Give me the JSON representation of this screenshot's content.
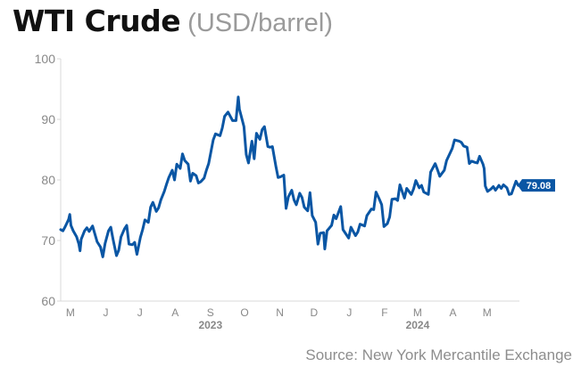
{
  "title": "WTI Crude",
  "subtitle": "(USD/barrel)",
  "source": "Source: New York Mercantile Exchange",
  "colors": {
    "line": "#0a56a4",
    "grid": "#d9d9d9",
    "axis_text": "#888888",
    "label_bg": "#0a56a4"
  },
  "chart_data": {
    "type": "line",
    "title": "WTI Crude",
    "subtitle": "(USD/barrel)",
    "xlabel": "",
    "ylabel": "",
    "ylim": [
      60,
      100
    ],
    "yticks": [
      60,
      70,
      80,
      90,
      100
    ],
    "grid": "vertical-left-axis-only",
    "x_ticks": [
      "2023-05-01",
      "2023-06-01",
      "2023-07-01",
      "2023-08-01",
      "2023-09-01",
      "2023-10-01",
      "2023-11-01",
      "2023-12-01",
      "2024-01-01",
      "2024-02-01",
      "2024-03-01",
      "2024-04-01",
      "2024-05-01"
    ],
    "x_tick_labels": [
      "M",
      "J",
      "J",
      "A",
      "S",
      "O",
      "N",
      "D",
      "J",
      "F",
      "M",
      "A",
      "M"
    ],
    "year_labels": [
      {
        "label": "2023",
        "date": "2023-09-01"
      },
      {
        "label": "2024",
        "date": "2024-03-01"
      }
    ],
    "x_range": [
      "2023-04-24",
      "2024-05-31"
    ],
    "last_value_label": "79.08",
    "series": [
      {
        "values": [
          [
            "2023-04-24",
            71.8
          ],
          [
            "2023-04-26",
            71.6
          ],
          [
            "2023-04-28",
            72.3
          ],
          [
            "2023-05-01",
            73.5
          ],
          [
            "2023-05-02",
            74.3
          ],
          [
            "2023-05-03",
            72.5
          ],
          [
            "2023-05-05",
            71.6
          ],
          [
            "2023-05-08",
            70.6
          ],
          [
            "2023-05-10",
            69.4
          ],
          [
            "2023-05-11",
            68.3
          ],
          [
            "2023-05-12",
            70.2
          ],
          [
            "2023-05-15",
            71.6
          ],
          [
            "2023-05-17",
            72.1
          ],
          [
            "2023-05-19",
            71.5
          ],
          [
            "2023-05-22",
            72.4
          ],
          [
            "2023-05-24",
            71.1
          ],
          [
            "2023-05-26",
            69.8
          ],
          [
            "2023-05-29",
            68.9
          ],
          [
            "2023-05-31",
            67.3
          ],
          [
            "2023-06-02",
            69.5
          ],
          [
            "2023-06-05",
            71.6
          ],
          [
            "2023-06-07",
            72.2
          ],
          [
            "2023-06-09",
            70.2
          ],
          [
            "2023-06-12",
            67.5
          ],
          [
            "2023-06-14",
            68.4
          ],
          [
            "2023-06-16",
            70.6
          ],
          [
            "2023-06-19",
            71.9
          ],
          [
            "2023-06-21",
            72.5
          ],
          [
            "2023-06-23",
            69.4
          ],
          [
            "2023-06-26",
            69.3
          ],
          [
            "2023-06-28",
            69.7
          ],
          [
            "2023-06-30",
            67.7
          ],
          [
            "2023-07-03",
            70.5
          ],
          [
            "2023-07-05",
            71.8
          ],
          [
            "2023-07-07",
            73.4
          ],
          [
            "2023-07-10",
            73.0
          ],
          [
            "2023-07-12",
            75.5
          ],
          [
            "2023-07-14",
            76.3
          ],
          [
            "2023-07-17",
            74.8
          ],
          [
            "2023-07-19",
            75.4
          ],
          [
            "2023-07-21",
            76.7
          ],
          [
            "2023-07-24",
            78.1
          ],
          [
            "2023-07-26",
            79.3
          ],
          [
            "2023-07-28",
            80.4
          ],
          [
            "2023-07-31",
            81.6
          ],
          [
            "2023-08-02",
            80.0
          ],
          [
            "2023-08-04",
            82.6
          ],
          [
            "2023-08-07",
            81.9
          ],
          [
            "2023-08-09",
            84.3
          ],
          [
            "2023-08-11",
            83.2
          ],
          [
            "2023-08-14",
            82.6
          ],
          [
            "2023-08-16",
            79.8
          ],
          [
            "2023-08-18",
            81.1
          ],
          [
            "2023-08-21",
            80.7
          ],
          [
            "2023-08-23",
            79.5
          ],
          [
            "2023-08-25",
            79.7
          ],
          [
            "2023-08-28",
            80.3
          ],
          [
            "2023-08-30",
            81.6
          ],
          [
            "2023-09-01",
            82.7
          ],
          [
            "2023-09-05",
            86.6
          ],
          [
            "2023-09-07",
            87.6
          ],
          [
            "2023-09-11",
            87.3
          ],
          [
            "2023-09-13",
            88.6
          ],
          [
            "2023-09-15",
            90.5
          ],
          [
            "2023-09-18",
            91.2
          ],
          [
            "2023-09-20",
            90.5
          ],
          [
            "2023-09-22",
            89.8
          ],
          [
            "2023-09-25",
            89.8
          ],
          [
            "2023-09-27",
            93.7
          ],
          [
            "2023-09-28",
            91.7
          ],
          [
            "2023-10-02",
            88.8
          ],
          [
            "2023-10-04",
            84.2
          ],
          [
            "2023-10-06",
            82.8
          ],
          [
            "2023-10-09",
            86.4
          ],
          [
            "2023-10-11",
            83.5
          ],
          [
            "2023-10-13",
            87.7
          ],
          [
            "2023-10-16",
            86.7
          ],
          [
            "2023-10-18",
            88.3
          ],
          [
            "2023-10-20",
            88.8
          ],
          [
            "2023-10-23",
            85.5
          ],
          [
            "2023-10-25",
            85.4
          ],
          [
            "2023-10-27",
            85.5
          ],
          [
            "2023-10-30",
            82.3
          ],
          [
            "2023-11-01",
            80.4
          ],
          [
            "2023-11-03",
            80.5
          ],
          [
            "2023-11-06",
            80.8
          ],
          [
            "2023-11-08",
            75.3
          ],
          [
            "2023-11-10",
            77.2
          ],
          [
            "2023-11-13",
            78.3
          ],
          [
            "2023-11-15",
            76.7
          ],
          [
            "2023-11-17",
            75.9
          ],
          [
            "2023-11-20",
            77.8
          ],
          [
            "2023-11-22",
            77.1
          ],
          [
            "2023-11-24",
            75.5
          ],
          [
            "2023-11-27",
            74.9
          ],
          [
            "2023-11-29",
            77.9
          ],
          [
            "2023-12-01",
            74.1
          ],
          [
            "2023-12-04",
            73.0
          ],
          [
            "2023-12-06",
            69.4
          ],
          [
            "2023-12-08",
            71.2
          ],
          [
            "2023-12-11",
            71.3
          ],
          [
            "2023-12-12",
            68.6
          ],
          [
            "2023-12-14",
            71.6
          ],
          [
            "2023-12-18",
            72.5
          ],
          [
            "2023-12-20",
            74.2
          ],
          [
            "2023-12-22",
            73.6
          ],
          [
            "2023-12-26",
            75.6
          ],
          [
            "2023-12-28",
            71.8
          ],
          [
            "2024-01-02",
            70.4
          ],
          [
            "2024-01-04",
            72.2
          ],
          [
            "2024-01-08",
            70.8
          ],
          [
            "2024-01-10",
            71.4
          ],
          [
            "2024-01-12",
            72.7
          ],
          [
            "2024-01-16",
            72.4
          ],
          [
            "2024-01-18",
            74.1
          ],
          [
            "2024-01-22",
            75.2
          ],
          [
            "2024-01-24",
            75.1
          ],
          [
            "2024-01-26",
            78.0
          ],
          [
            "2024-01-29",
            76.8
          ],
          [
            "2024-01-31",
            75.9
          ],
          [
            "2024-02-02",
            72.3
          ],
          [
            "2024-02-05",
            72.8
          ],
          [
            "2024-02-07",
            73.9
          ],
          [
            "2024-02-09",
            76.8
          ],
          [
            "2024-02-12",
            76.9
          ],
          [
            "2024-02-14",
            76.6
          ],
          [
            "2024-02-16",
            79.2
          ],
          [
            "2024-02-20",
            77.0
          ],
          [
            "2024-02-22",
            78.6
          ],
          [
            "2024-02-26",
            77.6
          ],
          [
            "2024-02-28",
            78.5
          ],
          [
            "2024-03-01",
            79.9
          ],
          [
            "2024-03-04",
            78.7
          ],
          [
            "2024-03-06",
            79.1
          ],
          [
            "2024-03-08",
            78.0
          ],
          [
            "2024-03-12",
            77.6
          ],
          [
            "2024-03-14",
            81.3
          ],
          [
            "2024-03-18",
            82.7
          ],
          [
            "2024-03-20",
            81.7
          ],
          [
            "2024-03-22",
            80.6
          ],
          [
            "2024-03-26",
            81.6
          ],
          [
            "2024-03-28",
            83.2
          ],
          [
            "2024-04-02",
            85.2
          ],
          [
            "2024-04-04",
            86.6
          ],
          [
            "2024-04-08",
            86.4
          ],
          [
            "2024-04-10",
            86.2
          ],
          [
            "2024-04-12",
            85.6
          ],
          [
            "2024-04-15",
            85.4
          ],
          [
            "2024-04-17",
            82.7
          ],
          [
            "2024-04-19",
            83.1
          ],
          [
            "2024-04-22",
            82.9
          ],
          [
            "2024-04-24",
            82.8
          ],
          [
            "2024-04-26",
            83.9
          ],
          [
            "2024-04-29",
            82.6
          ],
          [
            "2024-04-30",
            81.9
          ],
          [
            "2024-05-01",
            79.0
          ],
          [
            "2024-05-03",
            78.1
          ],
          [
            "2024-05-06",
            78.5
          ],
          [
            "2024-05-08",
            78.9
          ],
          [
            "2024-05-10",
            78.3
          ],
          [
            "2024-05-13",
            79.1
          ],
          [
            "2024-05-15",
            78.6
          ],
          [
            "2024-05-17",
            79.2
          ],
          [
            "2024-05-20",
            78.7
          ],
          [
            "2024-05-22",
            77.6
          ],
          [
            "2024-05-24",
            77.7
          ],
          [
            "2024-05-28",
            79.8
          ],
          [
            "2024-05-30",
            79.1
          ]
        ]
      }
    ]
  }
}
